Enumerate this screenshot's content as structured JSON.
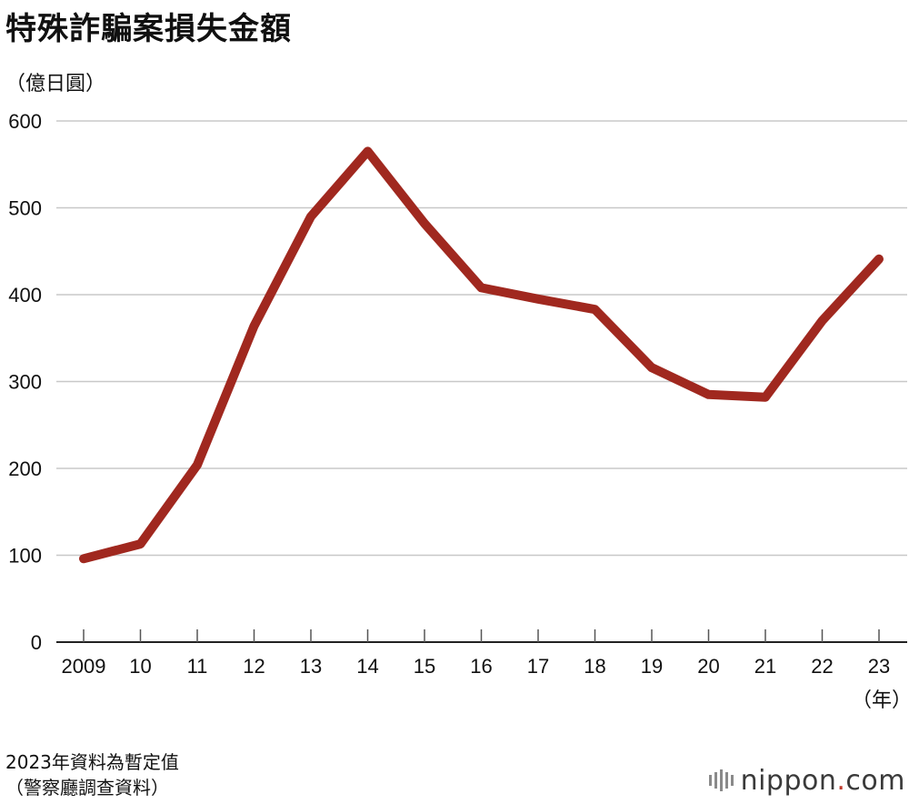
{
  "title": "特殊詐騙案損失金額",
  "unit_label": "（億日圓）",
  "note": "2023年資料為暫定值",
  "source": "（警察廳調查資料）",
  "logo": {
    "text": "nippon",
    "dot": ".",
    "suffix": "com"
  },
  "colors": {
    "line": "#a0281f",
    "grid": "#c8c8c8",
    "axis": "#222222"
  },
  "chart_data": {
    "type": "line",
    "x": [
      "2009",
      "10",
      "11",
      "12",
      "13",
      "14",
      "15",
      "16",
      "17",
      "18",
      "19",
      "20",
      "21",
      "22",
      "23"
    ],
    "x_unit_label": "（年）",
    "series": [
      {
        "values": [
          96,
          113,
          204,
          364,
          490,
          565,
          482,
          408,
          395,
          383,
          316,
          285,
          282,
          370,
          441
        ]
      }
    ],
    "ylim": [
      0,
      600
    ],
    "yticks": [
      0,
      100,
      200,
      300,
      400,
      500,
      600
    ],
    "grid": true
  }
}
